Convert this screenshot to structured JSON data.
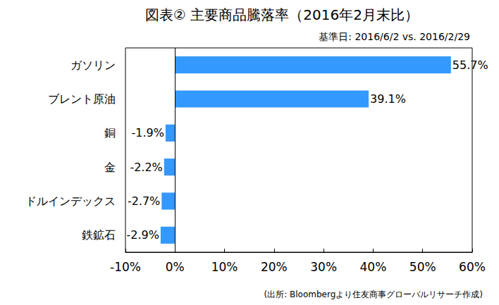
{
  "chart_data": {
    "type": "bar",
    "orientation": "horizontal",
    "title": "図表② 主要商品騰落率（2016年2月末比）",
    "subtitle": "基準日: 2016/6/2 vs. 2016/2/29",
    "annotations": [
      "(出所: Bloombergより住友商事グローバルリサーチ作成)"
    ],
    "categories": [
      "ガソリン",
      "ブレント原油",
      "銅",
      "金",
      "ドルインデックス",
      "鉄鉱石"
    ],
    "values": [
      55.7,
      39.1,
      -1.9,
      -2.2,
      -2.7,
      -2.9
    ],
    "value_labels": [
      "55.7%",
      "39.1%",
      "-1.9%",
      "-2.2%",
      "-2.7%",
      "-2.9%"
    ],
    "color": "#3399ff",
    "xlim": [
      -10,
      60
    ],
    "xticks": [
      {
        "value": -10,
        "label": "-10%"
      },
      {
        "value": 0,
        "label": "0%"
      },
      {
        "value": 10,
        "label": "10%"
      },
      {
        "value": 20,
        "label": "20%"
      },
      {
        "value": 30,
        "label": "30%"
      },
      {
        "value": 40,
        "label": "40%"
      },
      {
        "value": 50,
        "label": "50%"
      },
      {
        "value": 60,
        "label": "60%"
      }
    ],
    "grid": false,
    "data_labels": true
  }
}
